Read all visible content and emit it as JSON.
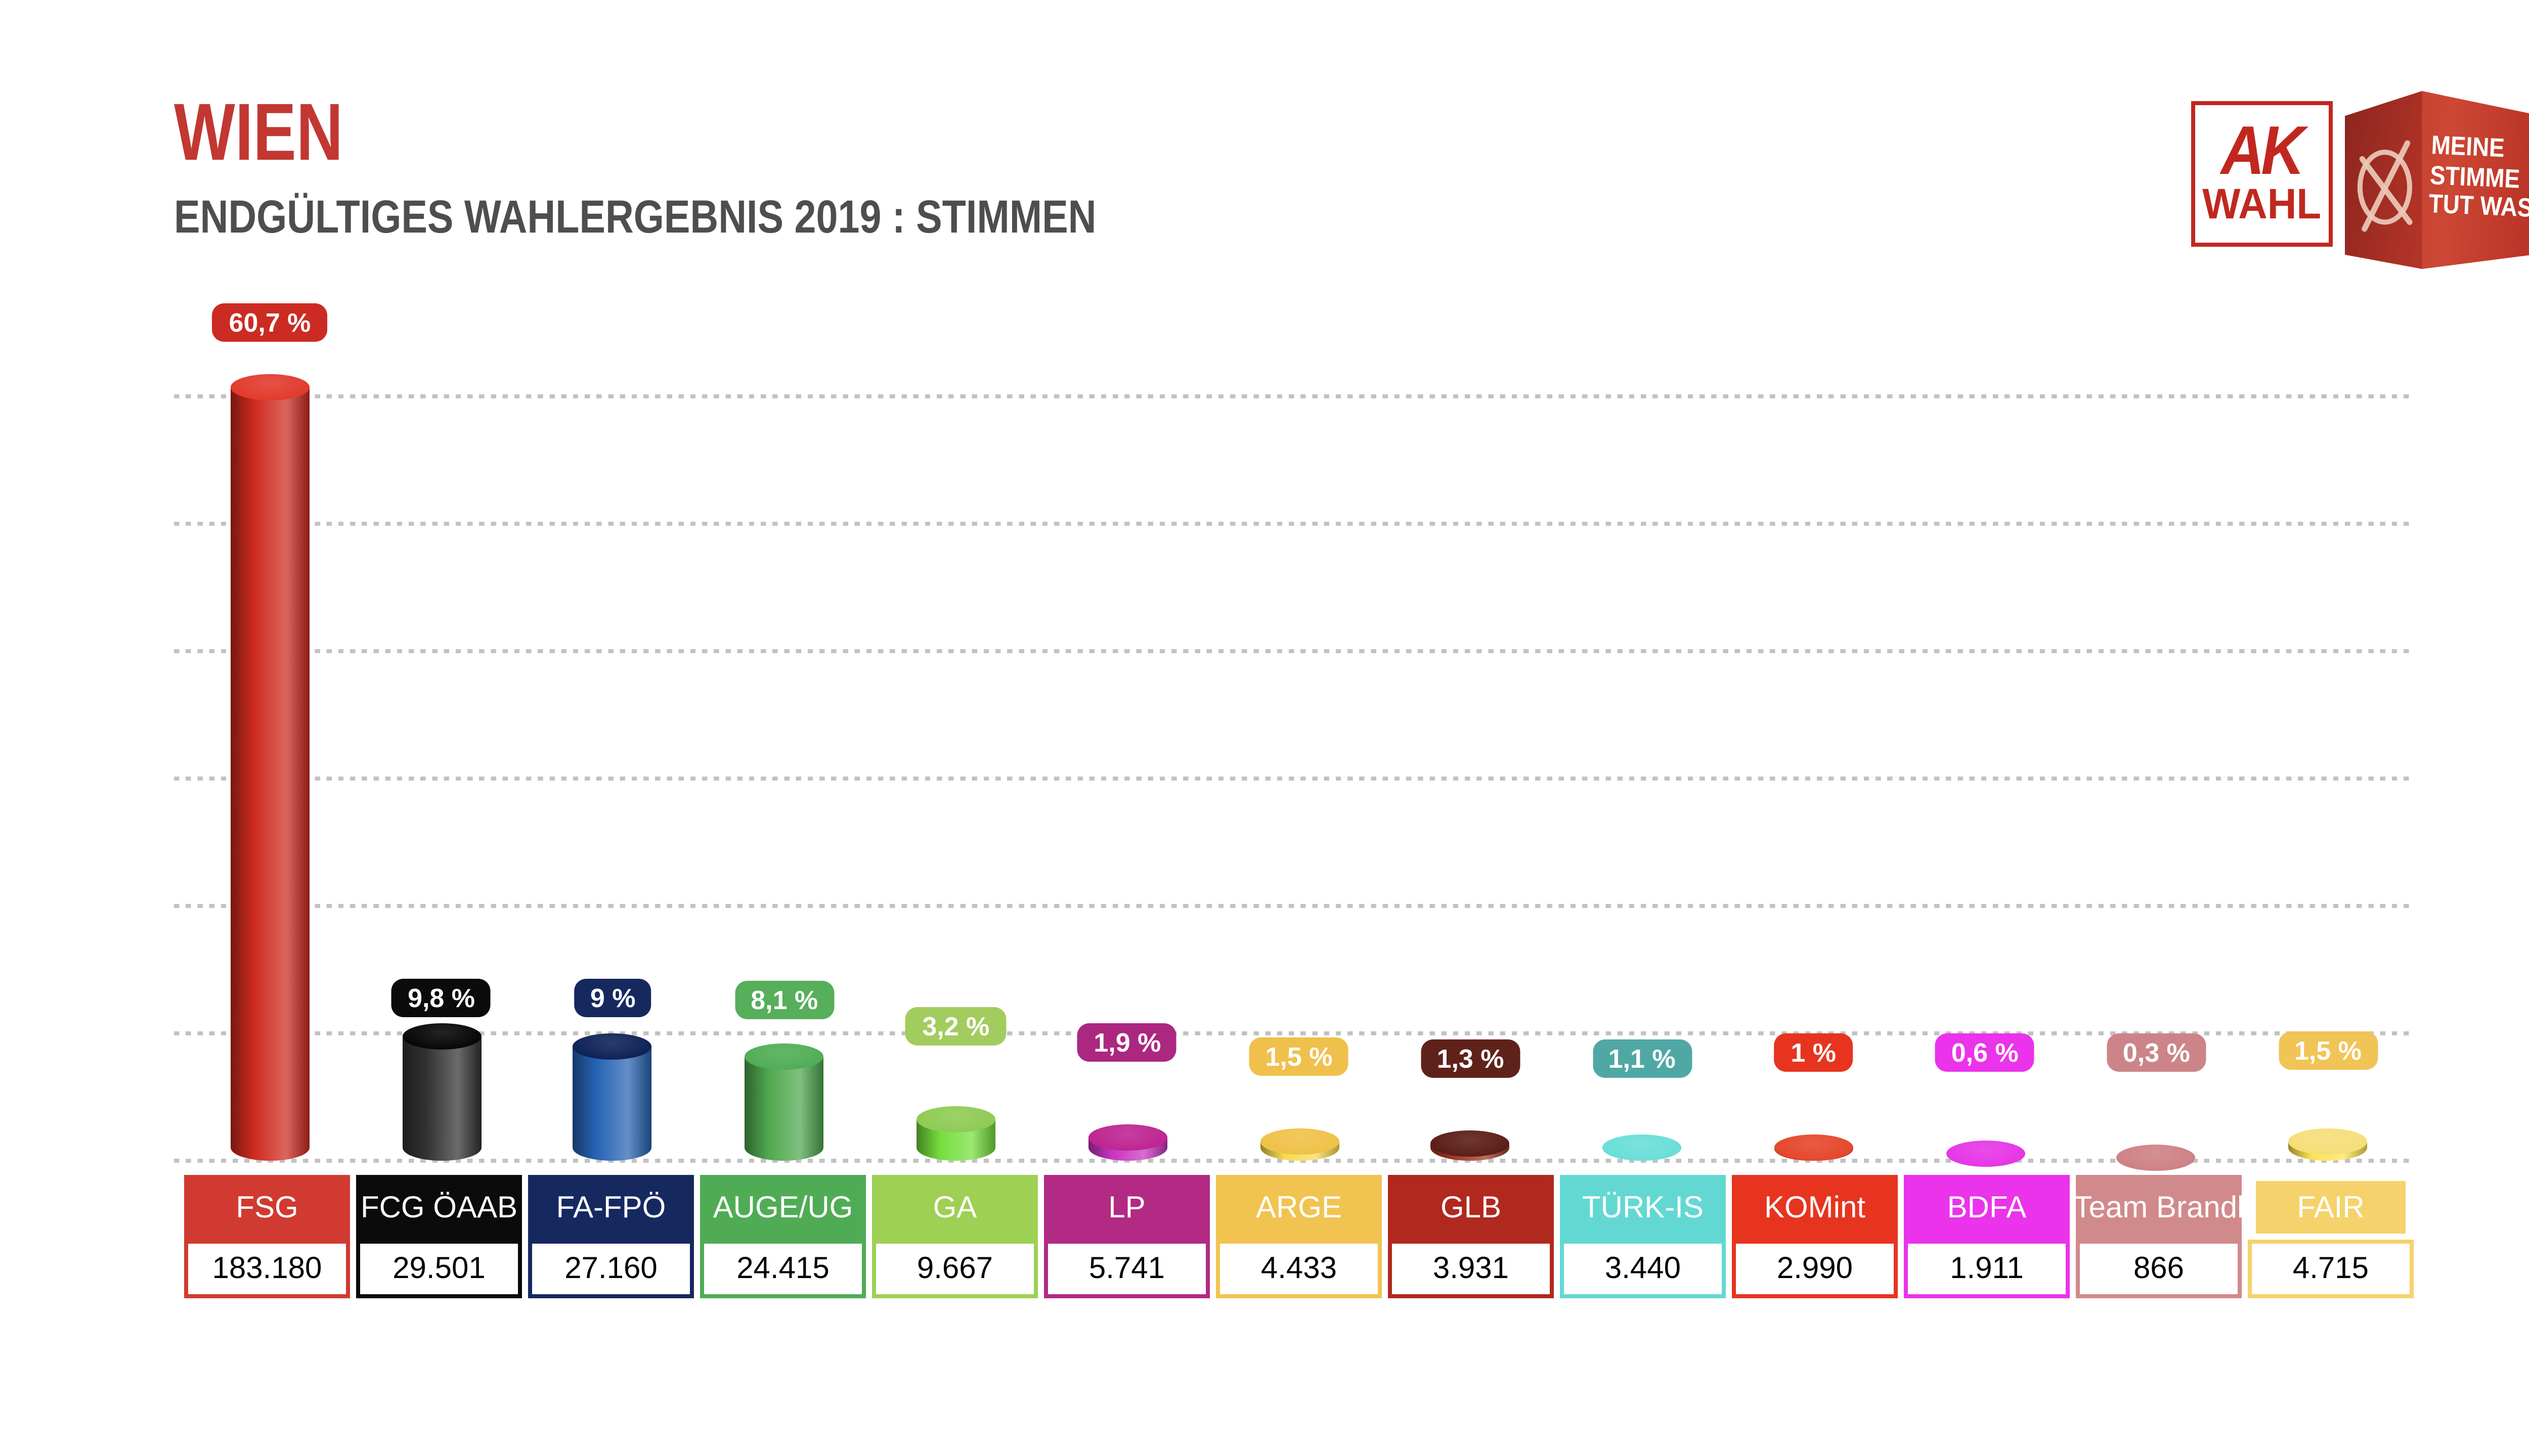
{
  "title": "WIEN",
  "subtitle": "ENDGÜLTIGES WAHLERGEBNIS 2019 : STIMMEN",
  "logo": {
    "ak": "AK",
    "wahl": "WAHL",
    "slogan_lines": [
      "MEINE",
      "STIMME",
      "TUT WAS."
    ],
    "brand_red": "#C1271F"
  },
  "parties": [
    {
      "name": "FSG",
      "votes_label": "183.180",
      "votes": 183180,
      "pct": 60.7,
      "pct_label": "60,7 %",
      "color": "#D13A30",
      "pill_color": "#CB2B22",
      "top_color": "#E13A2C",
      "body_color": "#CE2A1F"
    },
    {
      "name": "FCG ÖAAB",
      "votes_label": "29.501",
      "votes": 29501,
      "pct": 9.8,
      "pct_label": "9,8 %",
      "color": "#0B0B0B",
      "pill_color": "#0B0B0B",
      "top_color": "#060606",
      "body_color": "#323232"
    },
    {
      "name": "FA-FPÖ",
      "votes_label": "27.160",
      "votes": 27160,
      "pct": 9.0,
      "pct_label": "9 %",
      "color": "#16295F",
      "pill_color": "#16295F",
      "top_color": "#0E2156",
      "body_color": "#2663B4"
    },
    {
      "name": "AUGE/UG",
      "votes_label": "24.415",
      "votes": 24415,
      "pct": 8.1,
      "pct_label": "8,1 %",
      "color": "#4FAC55",
      "pill_color": "#57AE5B",
      "top_color": "#4FAD55",
      "body_color": "#4FA84F"
    },
    {
      "name": "GA",
      "votes_label": "9.667",
      "votes": 9667,
      "pct": 3.2,
      "pct_label": "3,2 %",
      "color": "#9ED053",
      "pill_color": "#A3CC5F",
      "top_color": "#8FCB53",
      "body_color": "#74DF3C"
    },
    {
      "name": "LP",
      "votes_label": "5.741",
      "votes": 5741,
      "pct": 1.9,
      "pct_label": "1,9 %",
      "color": "#B22A84",
      "pill_color": "#AC2780",
      "top_color": "#BE2492",
      "body_color": "#C934C2"
    },
    {
      "name": "ARGE",
      "votes_label": "4.433",
      "votes": 4433,
      "pct": 1.5,
      "pct_label": "1,5 %",
      "color": "#F1C351",
      "pill_color": "#EFC04C",
      "top_color": "#EFC148",
      "body_color": "#F8DA50"
    },
    {
      "name": "GLB",
      "votes_label": "3.931",
      "votes": 3931,
      "pct": 1.3,
      "pct_label": "1,3 %",
      "color": "#B1281E",
      "pill_color": "#5F221B",
      "top_color": "#5A1D15",
      "body_color": "#9E3826"
    },
    {
      "name": "TÜRK-IS",
      "votes_label": "3.440",
      "votes": 3440,
      "pct": 1.1,
      "pct_label": "1,1 %",
      "color": "#63D8D2",
      "pill_color": "#50A8A4",
      "top_color": "#69DED8",
      "body_color": "#5BE2DB"
    },
    {
      "name": "KOMint",
      "votes_label": "2.990",
      "votes": 2990,
      "pct": 1.0,
      "pct_label": "1 %",
      "color": "#E7341F",
      "pill_color": "#E7341F",
      "top_color": "#E5462B",
      "body_color": "#E93A1D"
    },
    {
      "name": "BDFA",
      "votes_label": "1.911",
      "votes": 1911,
      "pct": 0.6,
      "pct_label": "0,6 %",
      "color": "#EA33EA",
      "pill_color": "#EA33EA",
      "top_color": "#E635E6",
      "body_color": "#EC48DD"
    },
    {
      "name": "Team Brandl",
      "votes_label": "866",
      "votes": 866,
      "pct": 0.3,
      "pct_label": "0,3 %",
      "color": "#D18A8B",
      "pill_color": "#CC8488",
      "top_color": "#CE8184",
      "body_color": "#D6969B"
    },
    {
      "name": "FAIR",
      "votes_label": "4.715",
      "votes": 4715,
      "pct": 1.5,
      "pct_label": "1,5 %",
      "color": "#F5D26B",
      "pill_color": "#F0C455",
      "top_color": "#F6DE79",
      "body_color": "#FFE44E"
    }
  ],
  "chart_data": {
    "type": "bar",
    "bar_style": "3d-cylinder",
    "title": "WIEN — ENDGÜLTIGES WAHLERGEBNIS 2019 : STIMMEN",
    "xlabel": "",
    "ylabel": "",
    "categories": [
      "FSG",
      "FCG ÖAAB",
      "FA-FPÖ",
      "AUGE/UG",
      "GA",
      "LP",
      "ARGE",
      "GLB",
      "TÜRK-IS",
      "KOMint",
      "BDFA",
      "Team Brandl",
      "FAIR"
    ],
    "series": [
      {
        "name": "Stimmen",
        "values": [
          183180,
          29501,
          27160,
          24415,
          9667,
          5741,
          4433,
          3931,
          3440,
          2990,
          1911,
          866,
          4715
        ]
      },
      {
        "name": "Prozent",
        "values": [
          60.7,
          9.8,
          9.0,
          8.1,
          3.2,
          1.9,
          1.5,
          1.3,
          1.1,
          1.0,
          0.6,
          0.3,
          1.5
        ]
      }
    ],
    "pct_labels": [
      "60,7 %",
      "9,8 %",
      "9 %",
      "8,1 %",
      "3,2 %",
      "1,9 %",
      "1,5 %",
      "1,3 %",
      "1,1 %",
      "1 %",
      "0,6 %",
      "0,3 %",
      "1,5 %"
    ],
    "colors": [
      "#D13A30",
      "#0B0B0B",
      "#16295F",
      "#4FAC55",
      "#9ED053",
      "#B22A84",
      "#F1C351",
      "#B1281E",
      "#63D8D2",
      "#E7341F",
      "#EA33EA",
      "#D18A8B",
      "#F5D26B"
    ],
    "ylim_pct": [
      0,
      65
    ],
    "gridlines_pct": [
      10,
      20,
      30,
      40,
      50,
      60
    ],
    "grid": true,
    "legend_position": "bottom-table"
  }
}
